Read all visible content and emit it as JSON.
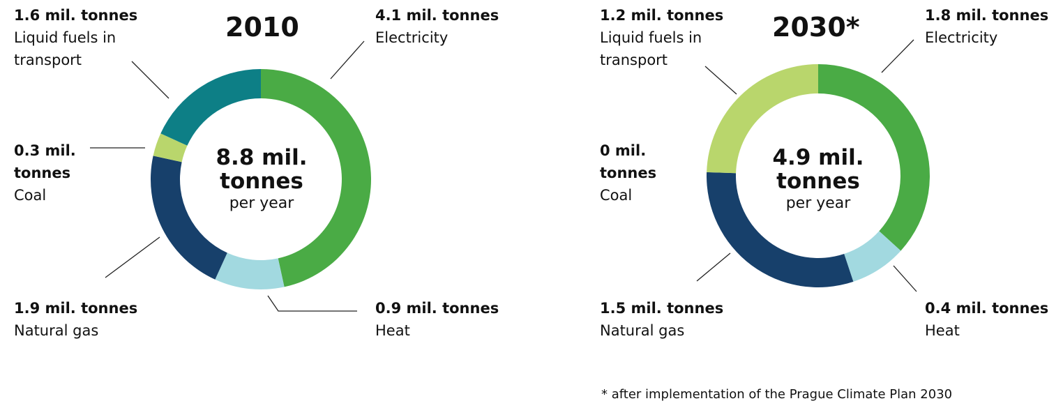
{
  "chart_data": [
    {
      "type": "pie",
      "title": "2010",
      "center": {
        "value": "8.8 mil. tonnes",
        "line1": "8.8 mil.",
        "line2": "tonnes",
        "unit": "per year"
      },
      "slices": [
        {
          "name": "Electricity",
          "value": 4.1,
          "value_label": "4.1 mil. tonnes",
          "color": "#4aab45"
        },
        {
          "name": "Heat",
          "value": 0.9,
          "value_label": "0.9 mil. tonnes",
          "color": "#a2d9e0"
        },
        {
          "name": "Natural gas",
          "value": 1.9,
          "value_label": "1.9 mil. tonnes",
          "color": "#17406b"
        },
        {
          "name": "Coal",
          "value": 0.3,
          "value_label": "0.3 mil. tonnes",
          "color": "#b9d66c"
        },
        {
          "name": "Liquid fuels in transport",
          "value": 1.6,
          "value_label": "1.6 mil. tonnes",
          "color": "#0d7f86"
        }
      ]
    },
    {
      "type": "pie",
      "title": "2030*",
      "center": {
        "value": "4.9 mil. tonnes",
        "line1": "4.9 mil.",
        "line2": "tonnes",
        "unit": "per year"
      },
      "slices": [
        {
          "name": "Electricity",
          "value": 1.8,
          "value_label": "1.8 mil. tonnes",
          "color": "#4aab45"
        },
        {
          "name": "Heat",
          "value": 0.4,
          "value_label": "0.4 mil. tonnes",
          "color": "#a2d9e0"
        },
        {
          "name": "Natural gas",
          "value": 1.5,
          "value_label": "1.5 mil. tonnes",
          "color": "#17406b"
        },
        {
          "name": "Coal",
          "value": 0,
          "value_label": "0 mil. tonnes",
          "color": "#b9d66c"
        },
        {
          "name": "Liquid fuels in transport",
          "value": 1.2,
          "value_label": "1.2 mil. tonnes",
          "color": "#b9d66c"
        }
      ]
    }
  ],
  "labels_2010": {
    "transport": {
      "value": "1.6 mil. tonnes",
      "name_line1": "Liquid fuels in",
      "name_line2": "transport"
    },
    "electricity": {
      "value": "4.1 mil. tonnes",
      "name": "Electricity"
    },
    "coal": {
      "value_line1": "0.3 mil.",
      "value_line2": "tonnes",
      "name": "Coal"
    },
    "gas": {
      "value": "1.9 mil. tonnes",
      "name": "Natural gas"
    },
    "heat": {
      "value": "0.9 mil. tonnes",
      "name": "Heat"
    }
  },
  "labels_2030": {
    "transport": {
      "value": "1.2 mil. tonnes",
      "name_line1": "Liquid fuels in",
      "name_line2": "transport"
    },
    "electricity": {
      "value": "1.8 mil. tonnes",
      "name": "Electricity"
    },
    "coal": {
      "value_line1": "0 mil.",
      "value_line2": "tonnes",
      "name": "Coal"
    },
    "gas": {
      "value": "1.5 mil. tonnes",
      "name": "Natural gas"
    },
    "heat": {
      "value": "0.4 mil. tonnes",
      "name": "Heat"
    }
  },
  "footnote": "* after implementation of the Prague Climate Plan 2030"
}
